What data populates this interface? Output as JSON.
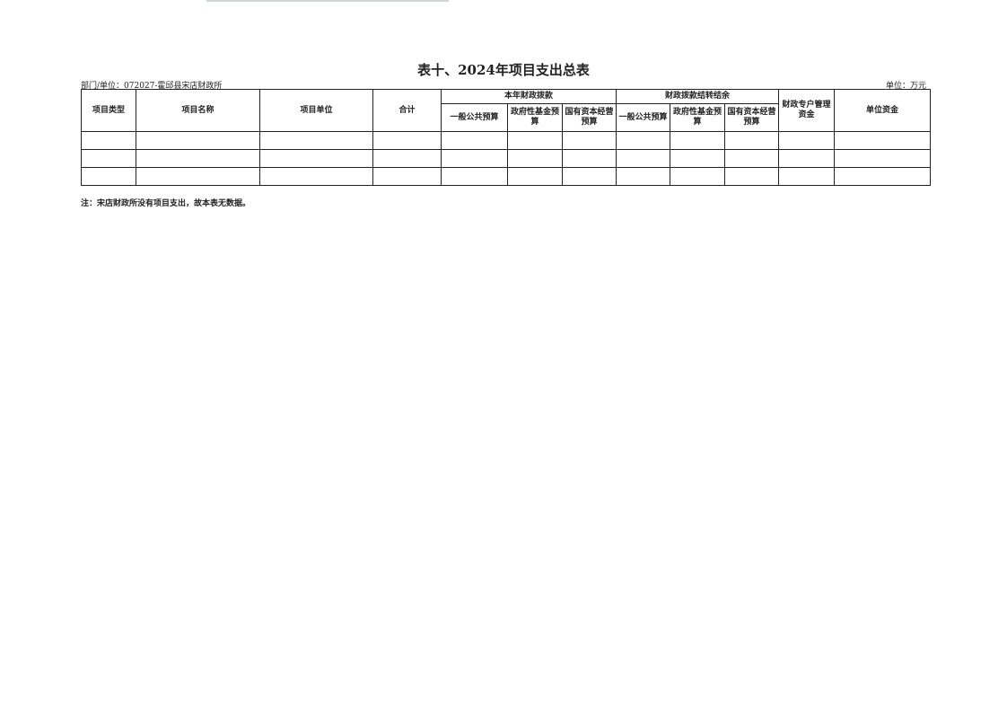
{
  "title": "表十、2024年项目支出总表",
  "dept": "部门/单位：072027-霍邱县宋店财政所",
  "unit": "单位：万元",
  "headers": {
    "type": "项目类型",
    "name": "项目名称",
    "unit": "项目单位",
    "total": "合计",
    "group1": "本年财政拨款",
    "group2": "财政拨款结转结余",
    "general": "一般公共预算",
    "fund": "政府性基金预算",
    "state": "国有资本经营预算",
    "special": "财政专户管理资金",
    "own": "单位资金"
  },
  "rows": [
    [],
    [],
    []
  ],
  "note": "注：宋店财政所没有项目支出，故本表无数据。"
}
